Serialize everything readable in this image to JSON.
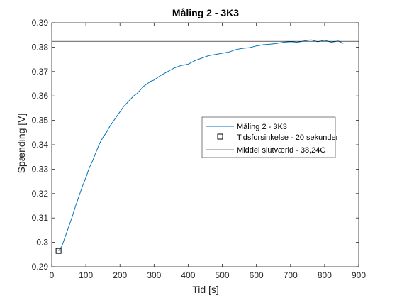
{
  "chart_data": {
    "type": "line",
    "title": "Måling 2 - 3K3",
    "xlabel": "Tid [s]",
    "ylabel": "Spænding [V]",
    "xlim": [
      0,
      900
    ],
    "ylim": [
      0.29,
      0.39
    ],
    "xticks": [
      0,
      100,
      200,
      300,
      400,
      500,
      600,
      700,
      800,
      900
    ],
    "yticks": [
      0.29,
      0.3,
      0.31,
      0.32,
      0.33,
      0.34,
      0.35,
      0.36,
      0.37,
      0.38,
      0.39
    ],
    "xtick_labels": [
      "0",
      "100",
      "200",
      "300",
      "400",
      "500",
      "600",
      "700",
      "800",
      "900"
    ],
    "ytick_labels": [
      "0.29",
      "0.3",
      "0.31",
      "0.32",
      "0.33",
      "0.34",
      "0.35",
      "0.36",
      "0.37",
      "0.38",
      "0.39"
    ],
    "grid": false,
    "legend_position": "middle-right",
    "series": [
      {
        "name": "Måling 2 - 3K3",
        "style": "line",
        "color": "#0072BD",
        "x": [
          20,
          30,
          40,
          50,
          60,
          70,
          80,
          90,
          100,
          110,
          120,
          130,
          140,
          150,
          160,
          170,
          180,
          190,
          200,
          210,
          220,
          230,
          240,
          250,
          260,
          270,
          280,
          290,
          300,
          320,
          340,
          360,
          380,
          400,
          420,
          440,
          460,
          480,
          500,
          520,
          540,
          560,
          580,
          600,
          620,
          640,
          660,
          680,
          700,
          720,
          740,
          760,
          780,
          800,
          820,
          840,
          855
        ],
        "y": [
          0.2965,
          0.2985,
          0.3025,
          0.3065,
          0.3105,
          0.315,
          0.319,
          0.323,
          0.3265,
          0.3305,
          0.3335,
          0.337,
          0.3405,
          0.343,
          0.345,
          0.3475,
          0.3495,
          0.3515,
          0.3535,
          0.3555,
          0.357,
          0.3585,
          0.36,
          0.361,
          0.3625,
          0.364,
          0.365,
          0.366,
          0.3665,
          0.3685,
          0.37,
          0.3715,
          0.3725,
          0.373,
          0.3745,
          0.3755,
          0.3765,
          0.377,
          0.3775,
          0.378,
          0.379,
          0.3795,
          0.3798,
          0.3805,
          0.381,
          0.3812,
          0.3815,
          0.382,
          0.3822,
          0.382,
          0.3825,
          0.383,
          0.3822,
          0.3828,
          0.382,
          0.3825,
          0.3815
        ]
      },
      {
        "name": "Tidsforsinkelse - 20 sekunder",
        "style": "marker",
        "marker": "square",
        "color": "#000000",
        "x": [
          20
        ],
        "y": [
          0.2965
        ]
      },
      {
        "name": "Middel slutværid - 38,24C",
        "style": "hline",
        "color": "#000000",
        "y": 0.3824
      }
    ]
  }
}
